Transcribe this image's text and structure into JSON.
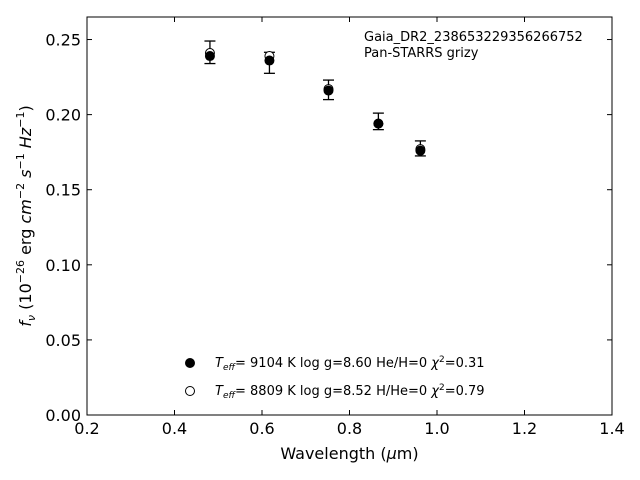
{
  "chart_data": {
    "type": "scatter",
    "xlabel_main": "Wavelength (",
    "xlabel_mu": "μ",
    "xlabel_unit": "m)",
    "ylabel": {
      "f": "f",
      "nu": "ν",
      "open": " (10",
      "exp1": "−26",
      "erg": " erg ",
      "cm": "cm",
      "exp2": "−2",
      "s": " s",
      "exp3": "−1",
      "hz": " Hz",
      "exp4": "−1",
      "close": ")"
    },
    "xlim": [
      0.2,
      1.4
    ],
    "ylim": [
      0.0,
      0.265
    ],
    "xticks": [
      0.2,
      0.4,
      0.6,
      0.8,
      1.0,
      1.2,
      1.4
    ],
    "xtick_labels": [
      "0.2",
      "0.4",
      "0.6",
      "0.8",
      "1.0",
      "1.2",
      "1.4"
    ],
    "yticks": [
      0.0,
      0.05,
      0.1,
      0.15,
      0.2,
      0.25
    ],
    "ytick_labels": [
      "0.00",
      "0.05",
      "0.10",
      "0.15",
      "0.20",
      "0.25"
    ],
    "annotation": [
      "Gaia_DR2_238653229356266752",
      "Pan-STARRS grizy"
    ],
    "observed": {
      "x": [
        0.481,
        0.617,
        0.752,
        0.866,
        0.962
      ],
      "y": [
        0.2415,
        0.2345,
        0.2165,
        0.1955,
        0.1775
      ],
      "yerr": [
        0.0075,
        0.007,
        0.0065,
        0.0055,
        0.005
      ]
    },
    "series": [
      {
        "marker": "filled",
        "x": [
          0.481,
          0.617,
          0.752,
          0.866,
          0.962
        ],
        "y": [
          0.239,
          0.236,
          0.216,
          0.194,
          0.176
        ]
      },
      {
        "marker": "open",
        "x": [
          0.481,
          0.617,
          0.752,
          0.866,
          0.962
        ],
        "y": [
          0.241,
          0.239,
          0.217,
          0.194,
          0.177
        ]
      }
    ],
    "legend": [
      {
        "marker": "filled",
        "teff_sym": "T",
        "teff_sub": "eff",
        "params": "=  9104 K  log g=8.60  He/H=0  ",
        "chi": "χ",
        "chi_exp": "2",
        "chi_val": "=0.31"
      },
      {
        "marker": "open",
        "teff_sym": "T",
        "teff_sub": "eff",
        "params": "=  8809 K  log g=8.52  H/He=0  ",
        "chi": "χ",
        "chi_exp": "2",
        "chi_val": "=0.79"
      }
    ],
    "legend_placement": "lower-center",
    "grid": false
  }
}
